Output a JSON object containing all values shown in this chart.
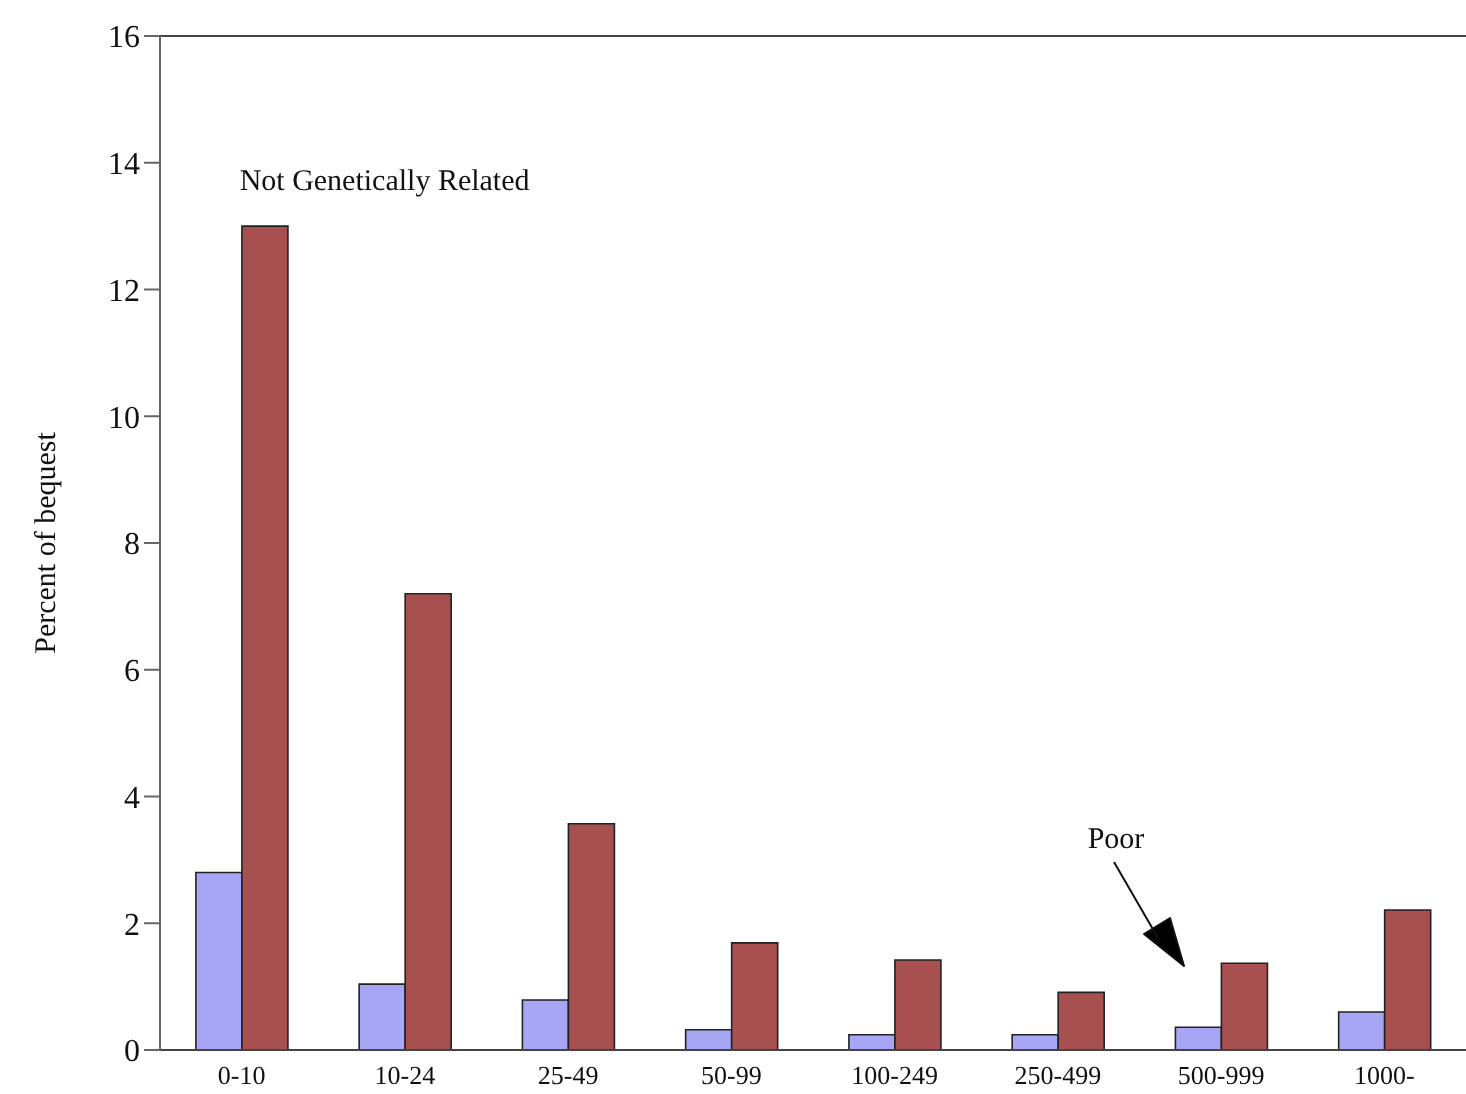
{
  "chart_data": {
    "type": "bar",
    "ylabel": "Percent of bequest",
    "categories": [
      "0-10",
      "10-24",
      "25-49",
      "50-99",
      "100-249",
      "250-499",
      "500-999",
      "1000-"
    ],
    "series": [
      {
        "color": "#a6a6f5",
        "values": [
          2.8,
          1.04,
          0.79,
          0.32,
          0.24,
          0.24,
          0.36,
          0.6
        ]
      },
      {
        "color": "#a8504f",
        "values": [
          13.0,
          7.2,
          3.57,
          1.69,
          1.42,
          0.91,
          1.37,
          2.21
        ]
      }
    ],
    "ylim": [
      0,
      16
    ],
    "yticks": [
      0,
      2,
      4,
      6,
      8,
      10,
      12,
      14,
      16
    ],
    "grid": false,
    "legend": false,
    "annotations": [
      {
        "text": "Not Genetically Related",
        "x": "0-10",
        "y": 13.0
      },
      "Poor"
    ]
  }
}
